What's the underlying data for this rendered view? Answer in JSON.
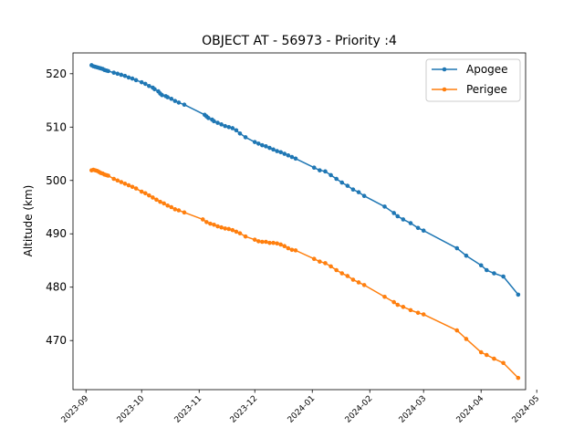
{
  "chart_data": {
    "type": "line",
    "title": "OBJECT AT - 56973 - Priority :4",
    "xlabel": "",
    "ylabel": "Altitude (km)",
    "x_type": "date",
    "xlim": [
      "2023-08-25",
      "2024-04-25"
    ],
    "ylim": [
      460.8,
      523.9
    ],
    "x_ticks": [
      "2023-09-01",
      "2023-10-01",
      "2023-11-01",
      "2023-12-01",
      "2024-01-01",
      "2024-02-01",
      "2024-03-01",
      "2024-04-01",
      "2024-05-01"
    ],
    "x_tick_labels": [
      "2023-09",
      "2023-10",
      "2023-11",
      "2023-12",
      "2024-01",
      "2024-02",
      "2024-03",
      "2024-04",
      "2024-05"
    ],
    "y_ticks": [
      470,
      480,
      490,
      500,
      510,
      520
    ],
    "grid": false,
    "legend_position": "top-right",
    "series": [
      {
        "name": "Apogee",
        "color": "#1f77b4",
        "marker": "circle",
        "points": [
          [
            "2023-09-04",
            521.6
          ],
          [
            "2023-09-05",
            521.4
          ],
          [
            "2023-09-06",
            521.3
          ],
          [
            "2023-09-07",
            521.2
          ],
          [
            "2023-09-08",
            521.1
          ],
          [
            "2023-09-09",
            521.0
          ],
          [
            "2023-09-10",
            520.9
          ],
          [
            "2023-09-11",
            520.7
          ],
          [
            "2023-09-12",
            520.6
          ],
          [
            "2023-09-13",
            520.5
          ],
          [
            "2023-09-16",
            520.2
          ],
          [
            "2023-09-18",
            520.0
          ],
          [
            "2023-09-20",
            519.8
          ],
          [
            "2023-09-22",
            519.6
          ],
          [
            "2023-09-24",
            519.3
          ],
          [
            "2023-09-26",
            519.1
          ],
          [
            "2023-09-28",
            518.8
          ],
          [
            "2023-10-01",
            518.4
          ],
          [
            "2023-10-03",
            518.1
          ],
          [
            "2023-10-05",
            517.7
          ],
          [
            "2023-10-07",
            517.4
          ],
          [
            "2023-10-08",
            517.1
          ],
          [
            "2023-10-10",
            516.7
          ],
          [
            "2023-10-11",
            516.3
          ],
          [
            "2023-10-12",
            516.0
          ],
          [
            "2023-10-14",
            515.8
          ],
          [
            "2023-10-15",
            515.6
          ],
          [
            "2023-10-17",
            515.3
          ],
          [
            "2023-10-19",
            514.9
          ],
          [
            "2023-10-21",
            514.6
          ],
          [
            "2023-10-24",
            514.2
          ],
          [
            "2023-11-04",
            512.3
          ],
          [
            "2023-11-05",
            512.0
          ],
          [
            "2023-11-06",
            511.7
          ],
          [
            "2023-11-08",
            511.4
          ],
          [
            "2023-11-09",
            511.1
          ],
          [
            "2023-11-11",
            510.8
          ],
          [
            "2023-11-13",
            510.5
          ],
          [
            "2023-11-15",
            510.2
          ],
          [
            "2023-11-17",
            510.0
          ],
          [
            "2023-11-19",
            509.8
          ],
          [
            "2023-11-21",
            509.4
          ],
          [
            "2023-11-23",
            508.8
          ],
          [
            "2023-11-26",
            508.1
          ],
          [
            "2023-12-01",
            507.2
          ],
          [
            "2023-12-03",
            506.9
          ],
          [
            "2023-12-05",
            506.6
          ],
          [
            "2023-12-07",
            506.4
          ],
          [
            "2023-12-09",
            506.1
          ],
          [
            "2023-12-11",
            505.8
          ],
          [
            "2023-12-13",
            505.5
          ],
          [
            "2023-12-15",
            505.3
          ],
          [
            "2023-12-17",
            505.0
          ],
          [
            "2023-12-19",
            504.7
          ],
          [
            "2023-12-21",
            504.4
          ],
          [
            "2023-12-23",
            504.1
          ],
          [
            "2024-01-02",
            502.4
          ],
          [
            "2024-01-05",
            501.9
          ],
          [
            "2024-01-08",
            501.7
          ],
          [
            "2024-01-11",
            501.0
          ],
          [
            "2024-01-14",
            500.3
          ],
          [
            "2024-01-17",
            499.6
          ],
          [
            "2024-01-20",
            499.0
          ],
          [
            "2024-01-23",
            498.3
          ],
          [
            "2024-01-26",
            497.8
          ],
          [
            "2024-01-29",
            497.1
          ],
          [
            "2024-02-09",
            495.1
          ],
          [
            "2024-02-14",
            493.9
          ],
          [
            "2024-02-16",
            493.3
          ],
          [
            "2024-02-19",
            492.7
          ],
          [
            "2024-02-23",
            492.0
          ],
          [
            "2024-02-27",
            491.1
          ],
          [
            "2024-03-01",
            490.6
          ],
          [
            "2024-03-19",
            487.3
          ],
          [
            "2024-03-24",
            485.9
          ],
          [
            "2024-04-01",
            484.1
          ],
          [
            "2024-04-04",
            483.2
          ],
          [
            "2024-04-08",
            482.6
          ],
          [
            "2024-04-13",
            482.0
          ],
          [
            "2024-04-21",
            478.6
          ]
        ]
      },
      {
        "name": "Perigee",
        "color": "#ff7f0e",
        "marker": "circle",
        "points": [
          [
            "2023-09-04",
            501.9
          ],
          [
            "2023-09-05",
            502.0
          ],
          [
            "2023-09-06",
            501.9
          ],
          [
            "2023-09-07",
            501.8
          ],
          [
            "2023-09-08",
            501.6
          ],
          [
            "2023-09-09",
            501.4
          ],
          [
            "2023-09-10",
            501.3
          ],
          [
            "2023-09-11",
            501.1
          ],
          [
            "2023-09-12",
            501.0
          ],
          [
            "2023-09-13",
            500.9
          ],
          [
            "2023-09-16",
            500.3
          ],
          [
            "2023-09-18",
            500.0
          ],
          [
            "2023-09-20",
            499.7
          ],
          [
            "2023-09-22",
            499.4
          ],
          [
            "2023-09-24",
            499.1
          ],
          [
            "2023-09-26",
            498.8
          ],
          [
            "2023-09-28",
            498.5
          ],
          [
            "2023-10-01",
            497.9
          ],
          [
            "2023-10-03",
            497.6
          ],
          [
            "2023-10-05",
            497.2
          ],
          [
            "2023-10-07",
            496.8
          ],
          [
            "2023-10-09",
            496.4
          ],
          [
            "2023-10-11",
            496.0
          ],
          [
            "2023-10-13",
            495.7
          ],
          [
            "2023-10-15",
            495.3
          ],
          [
            "2023-10-17",
            495.0
          ],
          [
            "2023-10-19",
            494.6
          ],
          [
            "2023-10-21",
            494.4
          ],
          [
            "2023-10-24",
            494.0
          ],
          [
            "2023-11-03",
            492.7
          ],
          [
            "2023-11-05",
            492.2
          ],
          [
            "2023-11-07",
            491.9
          ],
          [
            "2023-11-09",
            491.7
          ],
          [
            "2023-11-11",
            491.4
          ],
          [
            "2023-11-13",
            491.2
          ],
          [
            "2023-11-15",
            491.0
          ],
          [
            "2023-11-17",
            490.9
          ],
          [
            "2023-11-19",
            490.7
          ],
          [
            "2023-11-21",
            490.4
          ],
          [
            "2023-11-23",
            490.1
          ],
          [
            "2023-11-26",
            489.5
          ],
          [
            "2023-12-01",
            488.9
          ],
          [
            "2023-12-03",
            488.6
          ],
          [
            "2023-12-05",
            488.5
          ],
          [
            "2023-12-07",
            488.5
          ],
          [
            "2023-12-09",
            488.3
          ],
          [
            "2023-12-11",
            488.3
          ],
          [
            "2023-12-13",
            488.2
          ],
          [
            "2023-12-15",
            488.0
          ],
          [
            "2023-12-17",
            487.7
          ],
          [
            "2023-12-19",
            487.3
          ],
          [
            "2023-12-21",
            487.0
          ],
          [
            "2023-12-23",
            486.9
          ],
          [
            "2024-01-02",
            485.3
          ],
          [
            "2024-01-05",
            484.8
          ],
          [
            "2024-01-08",
            484.5
          ],
          [
            "2024-01-11",
            483.9
          ],
          [
            "2024-01-14",
            483.2
          ],
          [
            "2024-01-17",
            482.6
          ],
          [
            "2024-01-20",
            482.1
          ],
          [
            "2024-01-23",
            481.4
          ],
          [
            "2024-01-26",
            480.9
          ],
          [
            "2024-01-29",
            480.4
          ],
          [
            "2024-02-09",
            478.2
          ],
          [
            "2024-02-14",
            477.2
          ],
          [
            "2024-02-16",
            476.7
          ],
          [
            "2024-02-19",
            476.3
          ],
          [
            "2024-02-23",
            475.7
          ],
          [
            "2024-02-27",
            475.2
          ],
          [
            "2024-03-01",
            474.9
          ],
          [
            "2024-03-19",
            471.9
          ],
          [
            "2024-03-24",
            470.3
          ],
          [
            "2024-04-01",
            467.8
          ],
          [
            "2024-04-04",
            467.3
          ],
          [
            "2024-04-08",
            466.6
          ],
          [
            "2024-04-13",
            465.8
          ],
          [
            "2024-04-21",
            463.0
          ]
        ]
      }
    ]
  }
}
